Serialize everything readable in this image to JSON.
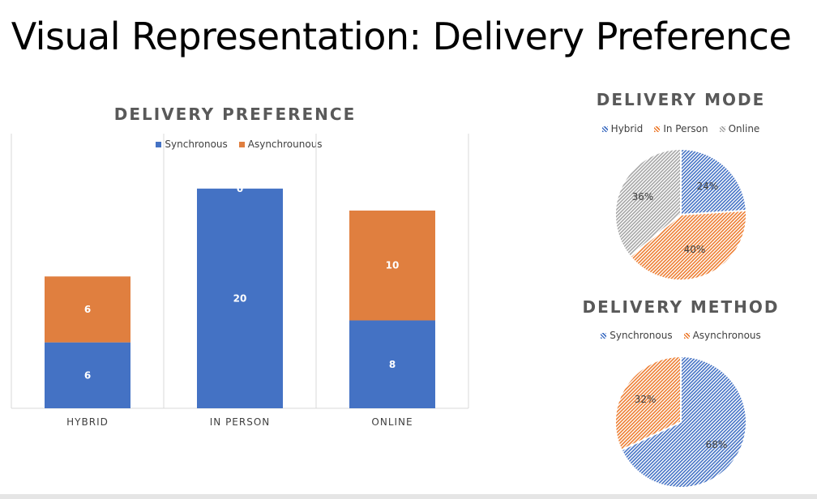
{
  "slide": {
    "title": "Visual Representation: Delivery Preference"
  },
  "chart_data": [
    {
      "type": "bar",
      "stacked": true,
      "title": "DELIVERY PREFERENCE",
      "categories": [
        "HYBRID",
        "IN PERSON",
        "ONLINE"
      ],
      "series": [
        {
          "name": "Synchronous",
          "values": [
            6,
            20,
            8
          ],
          "labels": [
            "6",
            "20",
            "8"
          ],
          "color": "#4472C4"
        },
        {
          "name": "Asynchrounous",
          "values": [
            6,
            0,
            10
          ],
          "labels": [
            "6",
            "0",
            "10"
          ],
          "color": "#E07F3F"
        }
      ],
      "ylim": [
        0,
        25
      ],
      "legend": "top",
      "grid": "vertical separators"
    },
    {
      "type": "pie",
      "title": "DELIVERY MODE",
      "labels": [
        "Hybrid",
        "In Person",
        "Online"
      ],
      "values": [
        24,
        40,
        36
      ],
      "value_labels": [
        "24%",
        "40%",
        "36%"
      ],
      "colors": [
        "#4472C4",
        "#ED7D31",
        "#A5A5A5"
      ],
      "pattern": "hatched",
      "legend": "top"
    },
    {
      "type": "pie",
      "title": "DELIVERY METHOD",
      "labels": [
        "Synchronous",
        "Asynchronous"
      ],
      "values": [
        68,
        32
      ],
      "value_labels": [
        "68%",
        "32%"
      ],
      "colors": [
        "#4472C4",
        "#ED7D31"
      ],
      "pattern": "hatched",
      "legend": "top"
    }
  ]
}
